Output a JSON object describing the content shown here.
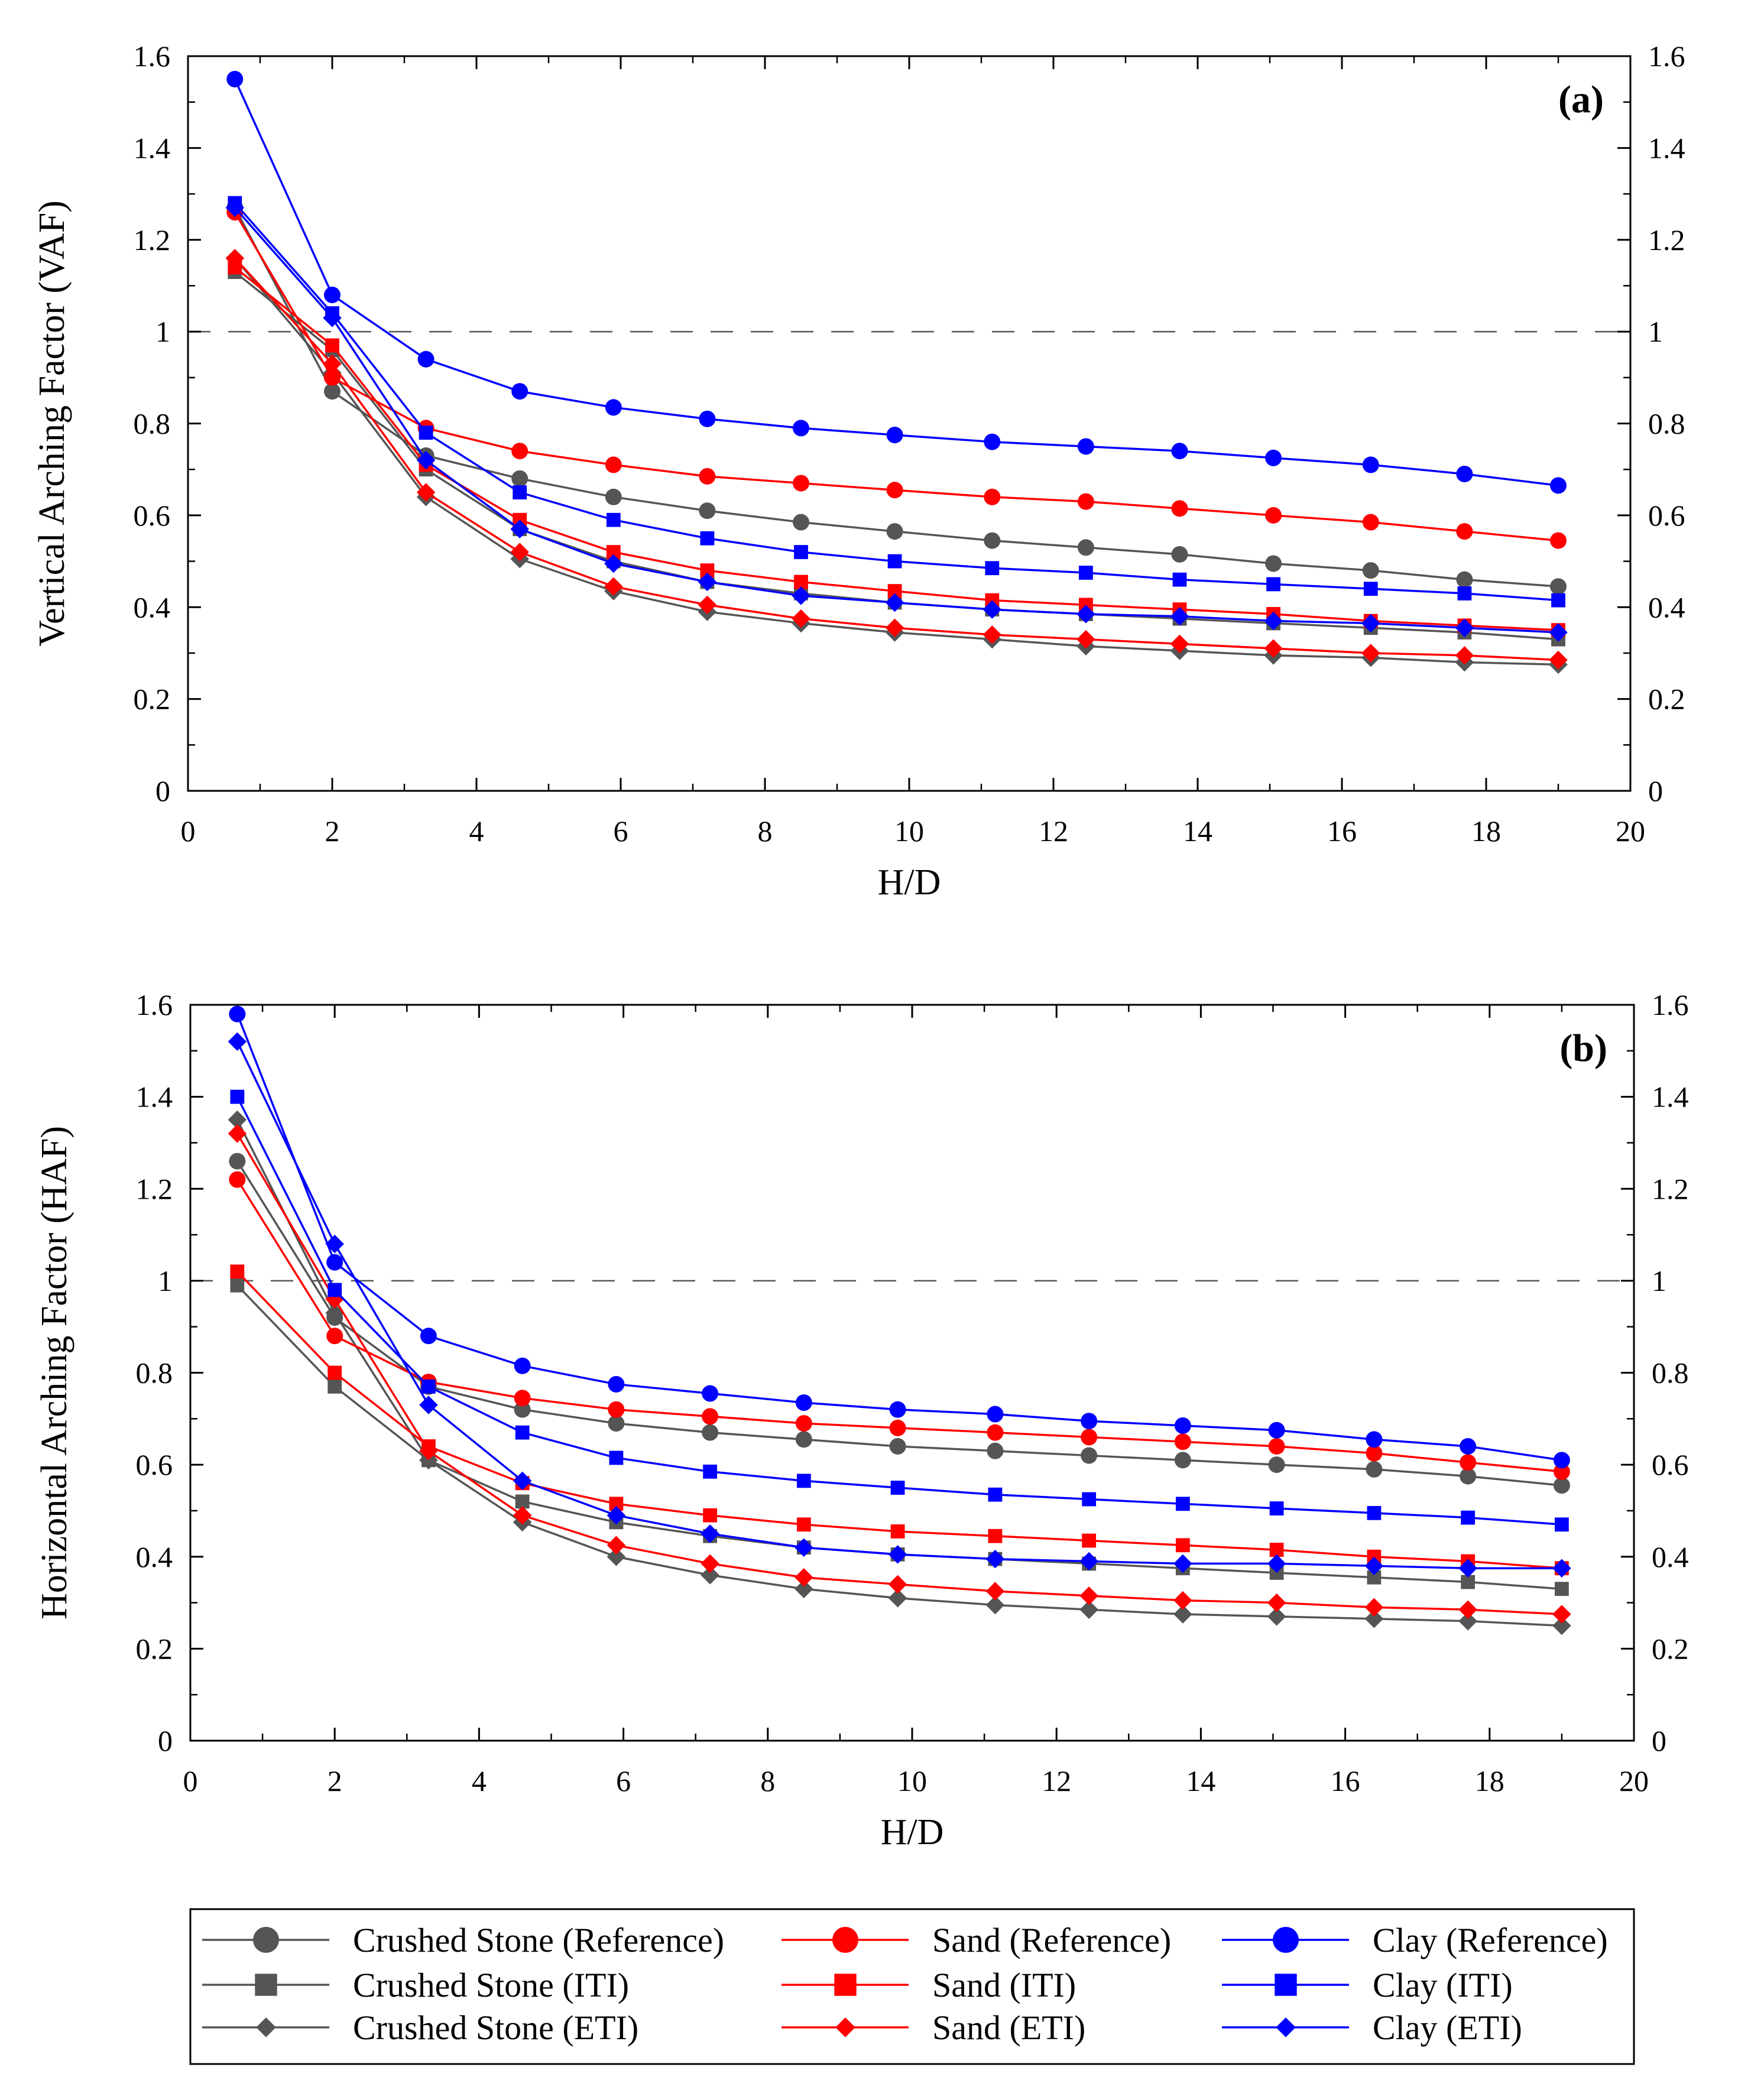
{
  "chart_data": [
    {
      "type": "line",
      "panel_label": "(a)",
      "xlabel": "H/D",
      "ylabel": "Vertical Arching Factor (VAF)",
      "xlim": [
        0,
        20
      ],
      "ylim": [
        0,
        1.6
      ],
      "x_ticks": [
        "0",
        "2",
        "4",
        "6",
        "8",
        "10",
        "12",
        "14",
        "16",
        "18",
        "20"
      ],
      "y_ticks": [
        "0",
        "0.2",
        "0.4",
        "0.6",
        "0.8",
        "1",
        "1.2",
        "1.4",
        "1.6"
      ],
      "reference_line": 1,
      "x": [
        0.65,
        2.0,
        3.3,
        4.6,
        5.9,
        7.2,
        8.5,
        9.8,
        11.15,
        12.45,
        13.75,
        15.05,
        16.4,
        17.7,
        19.0
      ],
      "series": [
        {
          "name": "Crushed Stone (Reference)",
          "color": "#555555",
          "marker": "circle",
          "values": [
            1.27,
            0.87,
            0.73,
            0.68,
            0.64,
            0.61,
            0.585,
            0.565,
            0.545,
            0.53,
            0.515,
            0.495,
            0.48,
            0.46,
            0.445
          ]
        },
        {
          "name": "Crushed Stone (ITI)",
          "color": "#555555",
          "marker": "square",
          "values": [
            1.13,
            0.96,
            0.7,
            0.57,
            0.5,
            0.455,
            0.43,
            0.41,
            0.395,
            0.385,
            0.375,
            0.365,
            0.355,
            0.345,
            0.33
          ]
        },
        {
          "name": "Crushed Stone (ETI)",
          "color": "#555555",
          "marker": "diamond",
          "values": [
            1.16,
            0.91,
            0.64,
            0.505,
            0.435,
            0.39,
            0.365,
            0.345,
            0.33,
            0.315,
            0.305,
            0.295,
            0.29,
            0.28,
            0.275
          ]
        },
        {
          "name": "Sand (Reference)",
          "color": "#ff0000",
          "marker": "circle",
          "values": [
            1.26,
            0.9,
            0.79,
            0.74,
            0.71,
            0.685,
            0.67,
            0.655,
            0.64,
            0.63,
            0.615,
            0.6,
            0.585,
            0.565,
            0.545
          ]
        },
        {
          "name": "Sand (ITI)",
          "color": "#ff0000",
          "marker": "square",
          "values": [
            1.14,
            0.97,
            0.71,
            0.59,
            0.52,
            0.48,
            0.455,
            0.435,
            0.415,
            0.405,
            0.395,
            0.385,
            0.37,
            0.36,
            0.35
          ]
        },
        {
          "name": "Sand (ETI)",
          "color": "#ff0000",
          "marker": "diamond",
          "values": [
            1.16,
            0.93,
            0.65,
            0.52,
            0.445,
            0.405,
            0.375,
            0.355,
            0.34,
            0.33,
            0.32,
            0.31,
            0.3,
            0.295,
            0.285
          ]
        },
        {
          "name": "Clay (Reference)",
          "color": "#0000ff",
          "marker": "circle",
          "values": [
            1.55,
            1.08,
            0.94,
            0.87,
            0.835,
            0.81,
            0.79,
            0.775,
            0.76,
            0.75,
            0.74,
            0.725,
            0.71,
            0.69,
            0.665
          ]
        },
        {
          "name": "Clay (ITI)",
          "color": "#0000ff",
          "marker": "square",
          "values": [
            1.28,
            1.04,
            0.78,
            0.65,
            0.59,
            0.55,
            0.52,
            0.5,
            0.485,
            0.475,
            0.46,
            0.45,
            0.44,
            0.43,
            0.415
          ]
        },
        {
          "name": "Clay (ETI)",
          "color": "#0000ff",
          "marker": "diamond",
          "values": [
            1.27,
            1.03,
            0.72,
            0.57,
            0.495,
            0.455,
            0.425,
            0.41,
            0.395,
            0.385,
            0.38,
            0.37,
            0.365,
            0.355,
            0.345
          ]
        }
      ]
    },
    {
      "type": "line",
      "panel_label": "(b)",
      "xlabel": "H/D",
      "ylabel": "Horizontal Arching Factor (HAF)",
      "xlim": [
        0,
        20
      ],
      "ylim": [
        0,
        1.6
      ],
      "x_ticks": [
        "0",
        "2",
        "4",
        "6",
        "8",
        "10",
        "12",
        "14",
        "16",
        "18",
        "20"
      ],
      "y_ticks": [
        "0",
        "0.2",
        "0.4",
        "0.6",
        "0.8",
        "1",
        "1.2",
        "1.4",
        "1.6"
      ],
      "reference_line": 1,
      "x": [
        0.65,
        2.0,
        3.3,
        4.6,
        5.9,
        7.2,
        8.5,
        9.8,
        11.15,
        12.45,
        13.75,
        15.05,
        16.4,
        17.7,
        19.0
      ],
      "series": [
        {
          "name": "Crushed Stone (Reference)",
          "color": "#555555",
          "marker": "circle",
          "values": [
            1.26,
            0.92,
            0.77,
            0.72,
            0.69,
            0.67,
            0.655,
            0.64,
            0.63,
            0.62,
            0.61,
            0.6,
            0.59,
            0.575,
            0.555
          ]
        },
        {
          "name": "Crushed Stone (ITI)",
          "color": "#555555",
          "marker": "square",
          "values": [
            0.99,
            0.77,
            0.61,
            0.52,
            0.475,
            0.445,
            0.42,
            0.405,
            0.395,
            0.385,
            0.375,
            0.365,
            0.355,
            0.345,
            0.33
          ]
        },
        {
          "name": "Crushed Stone (ETI)",
          "color": "#555555",
          "marker": "diamond",
          "values": [
            1.35,
            0.93,
            0.61,
            0.475,
            0.4,
            0.36,
            0.33,
            0.31,
            0.295,
            0.285,
            0.275,
            0.27,
            0.265,
            0.26,
            0.25
          ]
        },
        {
          "name": "Sand (Reference)",
          "color": "#ff0000",
          "marker": "circle",
          "values": [
            1.22,
            0.88,
            0.78,
            0.745,
            0.72,
            0.705,
            0.69,
            0.68,
            0.67,
            0.66,
            0.65,
            0.64,
            0.625,
            0.605,
            0.585
          ]
        },
        {
          "name": "Sand (ITI)",
          "color": "#ff0000",
          "marker": "square",
          "values": [
            1.02,
            0.8,
            0.64,
            0.56,
            0.515,
            0.49,
            0.47,
            0.455,
            0.445,
            0.435,
            0.425,
            0.415,
            0.4,
            0.39,
            0.375
          ]
        },
        {
          "name": "Sand (ETI)",
          "color": "#ff0000",
          "marker": "diamond",
          "values": [
            1.32,
            0.96,
            0.63,
            0.49,
            0.425,
            0.385,
            0.355,
            0.34,
            0.325,
            0.315,
            0.305,
            0.3,
            0.29,
            0.285,
            0.275
          ]
        },
        {
          "name": "Clay (Reference)",
          "color": "#0000ff",
          "marker": "circle",
          "values": [
            1.58,
            1.04,
            0.88,
            0.815,
            0.775,
            0.755,
            0.735,
            0.72,
            0.71,
            0.695,
            0.685,
            0.675,
            0.655,
            0.64,
            0.61
          ]
        },
        {
          "name": "Clay (ITI)",
          "color": "#0000ff",
          "marker": "square",
          "values": [
            1.4,
            0.98,
            0.77,
            0.67,
            0.615,
            0.585,
            0.565,
            0.55,
            0.535,
            0.525,
            0.515,
            0.505,
            0.495,
            0.485,
            0.47
          ]
        },
        {
          "name": "Clay (ETI)",
          "color": "#0000ff",
          "marker": "diamond",
          "values": [
            1.52,
            1.08,
            0.73,
            0.565,
            0.49,
            0.45,
            0.42,
            0.405,
            0.395,
            0.39,
            0.385,
            0.385,
            0.38,
            0.375,
            0.375
          ]
        }
      ]
    }
  ],
  "legend": {
    "columns": [
      [
        "Crushed Stone (Reference)",
        "Crushed Stone (ITI)",
        "Crushed Stone (ETI)"
      ],
      [
        "Sand (Reference)",
        "Sand (ITI)",
        "Sand (ETI)"
      ],
      [
        "Clay (Reference)",
        "Clay (ITI)",
        "Clay (ETI)"
      ]
    ],
    "colors": [
      "#555555",
      "#ff0000",
      "#0000ff"
    ],
    "markers": [
      "circle",
      "square",
      "diamond"
    ]
  }
}
